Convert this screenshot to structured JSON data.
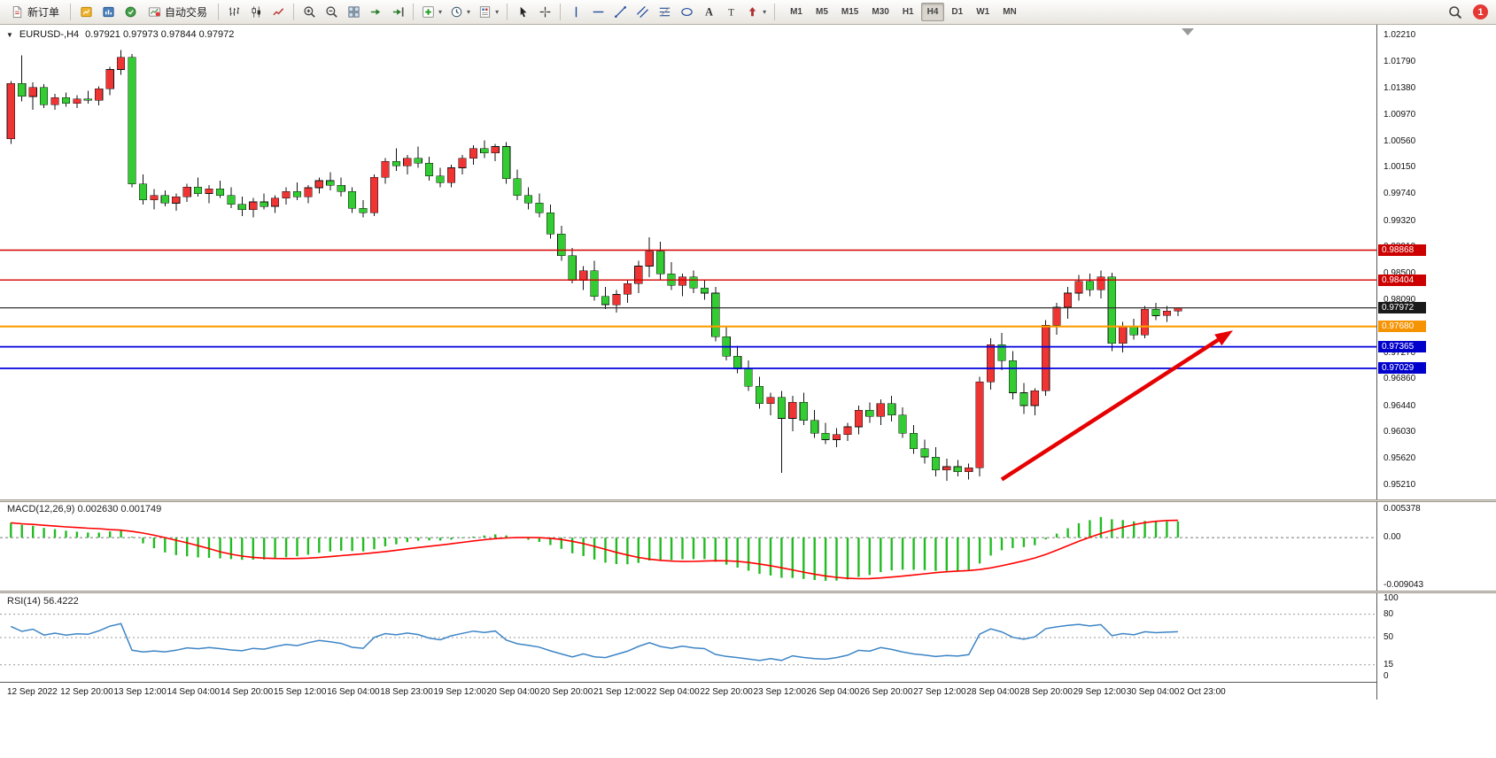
{
  "toolbar": {
    "new_order_label": "新订单",
    "auto_trading_label": "自动交易",
    "notification_count": "1",
    "timeframes": [
      {
        "label": "M1",
        "active": false
      },
      {
        "label": "M5",
        "active": false
      },
      {
        "label": "M15",
        "active": false
      },
      {
        "label": "M30",
        "active": false
      },
      {
        "label": "H1",
        "active": false
      },
      {
        "label": "H4",
        "active": true
      },
      {
        "label": "D1",
        "active": false
      },
      {
        "label": "W1",
        "active": false
      },
      {
        "label": "MN",
        "active": false
      }
    ]
  },
  "chart": {
    "symbol_period": "EURUSD-,H4",
    "ohlc_text": "0.97921 0.97973 0.97844 0.97972",
    "open": "0.97921",
    "high": "0.97973",
    "low": "0.97844",
    "close": "0.97972"
  },
  "price_axis": {
    "labels": [
      "1.02210",
      "1.01790",
      "1.01380",
      "1.00970",
      "1.00560",
      "1.00150",
      "0.99740",
      "0.99320",
      "0.98910",
      "0.98500",
      "0.98090",
      "0.97680",
      "0.97270",
      "0.96860",
      "0.96440",
      "0.96030",
      "0.95620",
      "0.95210"
    ]
  },
  "levels": [
    {
      "name": "resistance-1",
      "price": 0.98868,
      "label": "0.98868",
      "color": "#d40000",
      "bg": "#cc0000",
      "width": 1.4
    },
    {
      "name": "resistance-2",
      "price": 0.98404,
      "label": "0.98404",
      "color": "#d40000",
      "bg": "#cc0000",
      "width": 1.4
    },
    {
      "name": "current-price",
      "price": 0.97972,
      "label": "0.97972",
      "color": "#333333",
      "bg": "#1a1a1a",
      "width": 1.2
    },
    {
      "name": "support-orange",
      "price": 0.9768,
      "label": "0.97680",
      "color": "#ff9d00",
      "bg": "#f59300",
      "width": 2.2
    },
    {
      "name": "support-blue-1",
      "price": 0.97365,
      "label": "0.97365",
      "color": "#0000dd",
      "bg": "#0000cc",
      "width": 1.8
    },
    {
      "name": "support-blue-2",
      "price": 0.97029,
      "label": "0.97029",
      "color": "#0000dd",
      "bg": "#0000cc",
      "width": 1.8
    }
  ],
  "chart_data": {
    "type": "candlestick",
    "symbol": "EURUSD-",
    "timeframe": "H4",
    "title": "EURUSD- H4 candlestick chart with MACD and RSI",
    "ylim": [
      0.9521,
      1.0221
    ],
    "colors": {
      "up": "#ef3434",
      "down": "#33cc33",
      "wick": "#111111",
      "macd_hist": "#22bb22",
      "macd_signal": "#ff0000",
      "rsi": "#3d85c6",
      "arrow": "#e60000"
    },
    "candles": [
      [
        1.006,
        1.015,
        1.0052,
        1.0146
      ],
      [
        1.0146,
        1.019,
        1.0118,
        1.0126
      ],
      [
        1.0126,
        1.0148,
        1.0105,
        1.014
      ],
      [
        1.014,
        1.0145,
        1.0108,
        1.0113
      ],
      [
        1.0113,
        1.013,
        1.0105,
        1.0124
      ],
      [
        1.0124,
        1.0132,
        1.011,
        1.0115
      ],
      [
        1.0115,
        1.0128,
        1.0108,
        1.0122
      ],
      [
        1.0122,
        1.0135,
        1.0115,
        1.012
      ],
      [
        1.012,
        1.0142,
        1.0112,
        1.0138
      ],
      [
        1.0138,
        1.0172,
        1.0128,
        1.0168
      ],
      [
        1.0168,
        1.0198,
        1.016,
        1.0187
      ],
      [
        1.0187,
        1.0192,
        0.9985,
        0.999
      ],
      [
        0.999,
        1.0005,
        0.9958,
        0.9965
      ],
      [
        0.9965,
        0.9982,
        0.995,
        0.9972
      ],
      [
        0.9972,
        0.998,
        0.9955,
        0.996
      ],
      [
        0.996,
        0.9975,
        0.9948,
        0.997
      ],
      [
        0.997,
        0.999,
        0.9962,
        0.9985
      ],
      [
        0.9985,
        1.0,
        0.997,
        0.9975
      ],
      [
        0.9975,
        0.9988,
        0.996,
        0.9982
      ],
      [
        0.9982,
        0.9995,
        0.9968,
        0.9972
      ],
      [
        0.9972,
        0.9985,
        0.9952,
        0.9958
      ],
      [
        0.9958,
        0.997,
        0.994,
        0.995
      ],
      [
        0.995,
        0.9968,
        0.9938,
        0.9962
      ],
      [
        0.9962,
        0.9975,
        0.995,
        0.9955
      ],
      [
        0.9955,
        0.9972,
        0.9945,
        0.9968
      ],
      [
        0.9968,
        0.9985,
        0.9958,
        0.9978
      ],
      [
        0.9978,
        0.9992,
        0.9965,
        0.997
      ],
      [
        0.997,
        0.9988,
        0.996,
        0.9984
      ],
      [
        0.9984,
        1.0,
        0.9975,
        0.9995
      ],
      [
        0.9995,
        1.0008,
        0.998,
        0.9988
      ],
      [
        0.9988,
        1.0,
        0.997,
        0.9978
      ],
      [
        0.9978,
        0.9985,
        0.9945,
        0.9952
      ],
      [
        0.9952,
        0.9965,
        0.9938,
        0.9945
      ],
      [
        0.9945,
        1.0005,
        0.994,
        1.0
      ],
      [
        1.0,
        1.003,
        0.999,
        1.0025
      ],
      [
        1.0025,
        1.0045,
        1.001,
        1.0018
      ],
      [
        1.0018,
        1.0035,
        1.0005,
        1.003
      ],
      [
        1.003,
        1.0048,
        1.0015,
        1.0022
      ],
      [
        1.0022,
        1.0032,
        0.9995,
        1.0002
      ],
      [
        1.0002,
        1.0015,
        0.9985,
        0.9992
      ],
      [
        0.9992,
        1.002,
        0.9985,
        1.0015
      ],
      [
        1.0015,
        1.0035,
        1.0005,
        1.003
      ],
      [
        1.003,
        1.005,
        1.002,
        1.0045
      ],
      [
        1.0045,
        1.0058,
        1.003,
        1.0038
      ],
      [
        1.0038,
        1.0052,
        1.0025,
        1.0048
      ],
      [
        1.0048,
        1.0055,
        0.999,
        0.9998
      ],
      [
        0.9998,
        1.0012,
        0.9965,
        0.9972
      ],
      [
        0.9972,
        0.9985,
        0.995,
        0.996
      ],
      [
        0.996,
        0.9975,
        0.9938,
        0.9945
      ],
      [
        0.9945,
        0.9958,
        0.9905,
        0.9912
      ],
      [
        0.9912,
        0.9925,
        0.987,
        0.9878
      ],
      [
        0.9878,
        0.989,
        0.9835,
        0.984
      ],
      [
        0.984,
        0.9862,
        0.9825,
        0.9855
      ],
      [
        0.9855,
        0.987,
        0.9808,
        0.9815
      ],
      [
        0.9815,
        0.983,
        0.9795,
        0.9802
      ],
      [
        0.9802,
        0.9825,
        0.979,
        0.9818
      ],
      [
        0.9818,
        0.984,
        0.9805,
        0.9835
      ],
      [
        0.9835,
        0.987,
        0.982,
        0.9862
      ],
      [
        0.9862,
        0.9907,
        0.9845,
        0.9885
      ],
      [
        0.9885,
        0.99,
        0.984,
        0.985
      ],
      [
        0.985,
        0.9868,
        0.9825,
        0.9832
      ],
      [
        0.9832,
        0.985,
        0.9815,
        0.9845
      ],
      [
        0.9845,
        0.9855,
        0.982,
        0.9828
      ],
      [
        0.9828,
        0.984,
        0.981,
        0.982
      ],
      [
        0.982,
        0.983,
        0.9745,
        0.9752
      ],
      [
        0.9752,
        0.9768,
        0.9715,
        0.9722
      ],
      [
        0.9722,
        0.9738,
        0.9695,
        0.9702
      ],
      [
        0.9702,
        0.9715,
        0.9668,
        0.9675
      ],
      [
        0.9675,
        0.969,
        0.964,
        0.9648
      ],
      [
        0.9648,
        0.9665,
        0.963,
        0.9658
      ],
      [
        0.9658,
        0.9668,
        0.954,
        0.9625
      ],
      [
        0.9625,
        0.966,
        0.9605,
        0.965
      ],
      [
        0.965,
        0.9665,
        0.9615,
        0.9622
      ],
      [
        0.9622,
        0.9638,
        0.9595,
        0.9602
      ],
      [
        0.9602,
        0.9618,
        0.9585,
        0.9592
      ],
      [
        0.9592,
        0.961,
        0.958,
        0.96
      ],
      [
        0.96,
        0.9618,
        0.959,
        0.9612
      ],
      [
        0.9612,
        0.9645,
        0.96,
        0.9638
      ],
      [
        0.9638,
        0.965,
        0.9618,
        0.9628
      ],
      [
        0.9628,
        0.9655,
        0.9615,
        0.9648
      ],
      [
        0.9648,
        0.966,
        0.962,
        0.963
      ],
      [
        0.963,
        0.9642,
        0.9595,
        0.9602
      ],
      [
        0.9602,
        0.9615,
        0.957,
        0.9578
      ],
      [
        0.9578,
        0.9592,
        0.9555,
        0.9565
      ],
      [
        0.9565,
        0.958,
        0.9535,
        0.9545
      ],
      [
        0.9545,
        0.9562,
        0.9528,
        0.955
      ],
      [
        0.955,
        0.956,
        0.9535,
        0.9542
      ],
      [
        0.9542,
        0.9555,
        0.953,
        0.9548
      ],
      [
        0.9548,
        0.969,
        0.9535,
        0.9682
      ],
      [
        0.9682,
        0.975,
        0.967,
        0.974
      ],
      [
        0.974,
        0.9758,
        0.97,
        0.9715
      ],
      [
        0.9715,
        0.973,
        0.9655,
        0.9665
      ],
      [
        0.9665,
        0.968,
        0.9632,
        0.9645
      ],
      [
        0.9645,
        0.9672,
        0.963,
        0.9668
      ],
      [
        0.9668,
        0.9778,
        0.966,
        0.977
      ],
      [
        0.977,
        0.9805,
        0.9755,
        0.9798
      ],
      [
        0.9798,
        0.983,
        0.978,
        0.982
      ],
      [
        0.982,
        0.9848,
        0.9808,
        0.9838
      ],
      [
        0.9838,
        0.985,
        0.9815,
        0.9825
      ],
      [
        0.9825,
        0.9855,
        0.9812,
        0.9845
      ],
      [
        0.9845,
        0.9852,
        0.973,
        0.9742
      ],
      [
        0.9742,
        0.9775,
        0.9728,
        0.9768
      ],
      [
        0.9768,
        0.978,
        0.9748,
        0.9755
      ],
      [
        0.9755,
        0.98,
        0.975,
        0.9795
      ],
      [
        0.9795,
        0.9805,
        0.9778,
        0.9785
      ],
      [
        0.9785,
        0.98,
        0.9775,
        0.9792
      ],
      [
        0.97921,
        0.97973,
        0.97844,
        0.97972
      ]
    ],
    "annotation_arrow": {
      "from_bar": 90,
      "from_price": 0.953,
      "to_bar": 111,
      "to_price": 0.9762
    }
  },
  "macd": {
    "label": "MACD(12,26,9) 0.002630 0.001749",
    "params": [
      12,
      26,
      9
    ],
    "value": "0.002630",
    "signal_value": "0.001749",
    "axis_labels": [
      "0.005378",
      "0.00",
      "-0.009043"
    ],
    "axis_values": [
      0.005378,
      0,
      -0.009043
    ],
    "ymax": 0.005378,
    "ymin": -0.009043
  },
  "rsi": {
    "label": "RSI(14) 56.4222",
    "period": 14,
    "value": "56.4222",
    "axis_labels": [
      "100",
      "80",
      "50",
      "15",
      "0"
    ],
    "axis_values": [
      100,
      80,
      50,
      15,
      0
    ],
    "level_lines": [
      80,
      50,
      15
    ]
  },
  "time_axis": {
    "labels": [
      "12 Sep 2022",
      "12 Sep 20:00",
      "13 Sep 12:00",
      "14 Sep 04:00",
      "14 Sep 20:00",
      "15 Sep 12:00",
      "16 Sep 04:00",
      "18 Sep 23:00",
      "19 Sep 12:00",
      "20 Sep 04:00",
      "20 Sep 20:00",
      "21 Sep 12:00",
      "22 Sep 04:00",
      "22 Sep 20:00",
      "23 Sep 12:00",
      "26 Sep 04:00",
      "26 Sep 20:00",
      "27 Sep 12:00",
      "28 Sep 04:00",
      "28 Sep 20:00",
      "29 Sep 12:00",
      "30 Sep 04:00",
      "2 Oct 23:00"
    ]
  }
}
